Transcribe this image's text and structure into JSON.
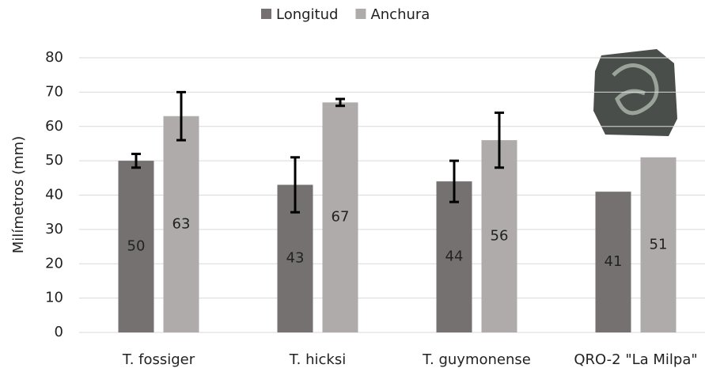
{
  "chart_data": {
    "type": "bar",
    "y_label": "Milímetros (mm)",
    "categories": [
      "T. fossiger",
      "T. hicksi",
      "T. guymonense",
      "QRO-2 \"La Milpa\""
    ],
    "series": [
      {
        "name": "Longitud",
        "color": "#767171",
        "values": [
          50,
          43,
          44,
          41
        ],
        "errors": [
          2,
          8,
          6,
          null
        ]
      },
      {
        "name": "Anchura",
        "color": "#afabab",
        "values": [
          63,
          67,
          56,
          51
        ],
        "errors": [
          7,
          1,
          8,
          null
        ]
      }
    ],
    "ylim": [
      0,
      80
    ],
    "yticks": [
      0,
      10,
      20,
      30,
      40,
      50,
      60,
      70,
      80
    ],
    "grid": true,
    "legend": "top"
  }
}
